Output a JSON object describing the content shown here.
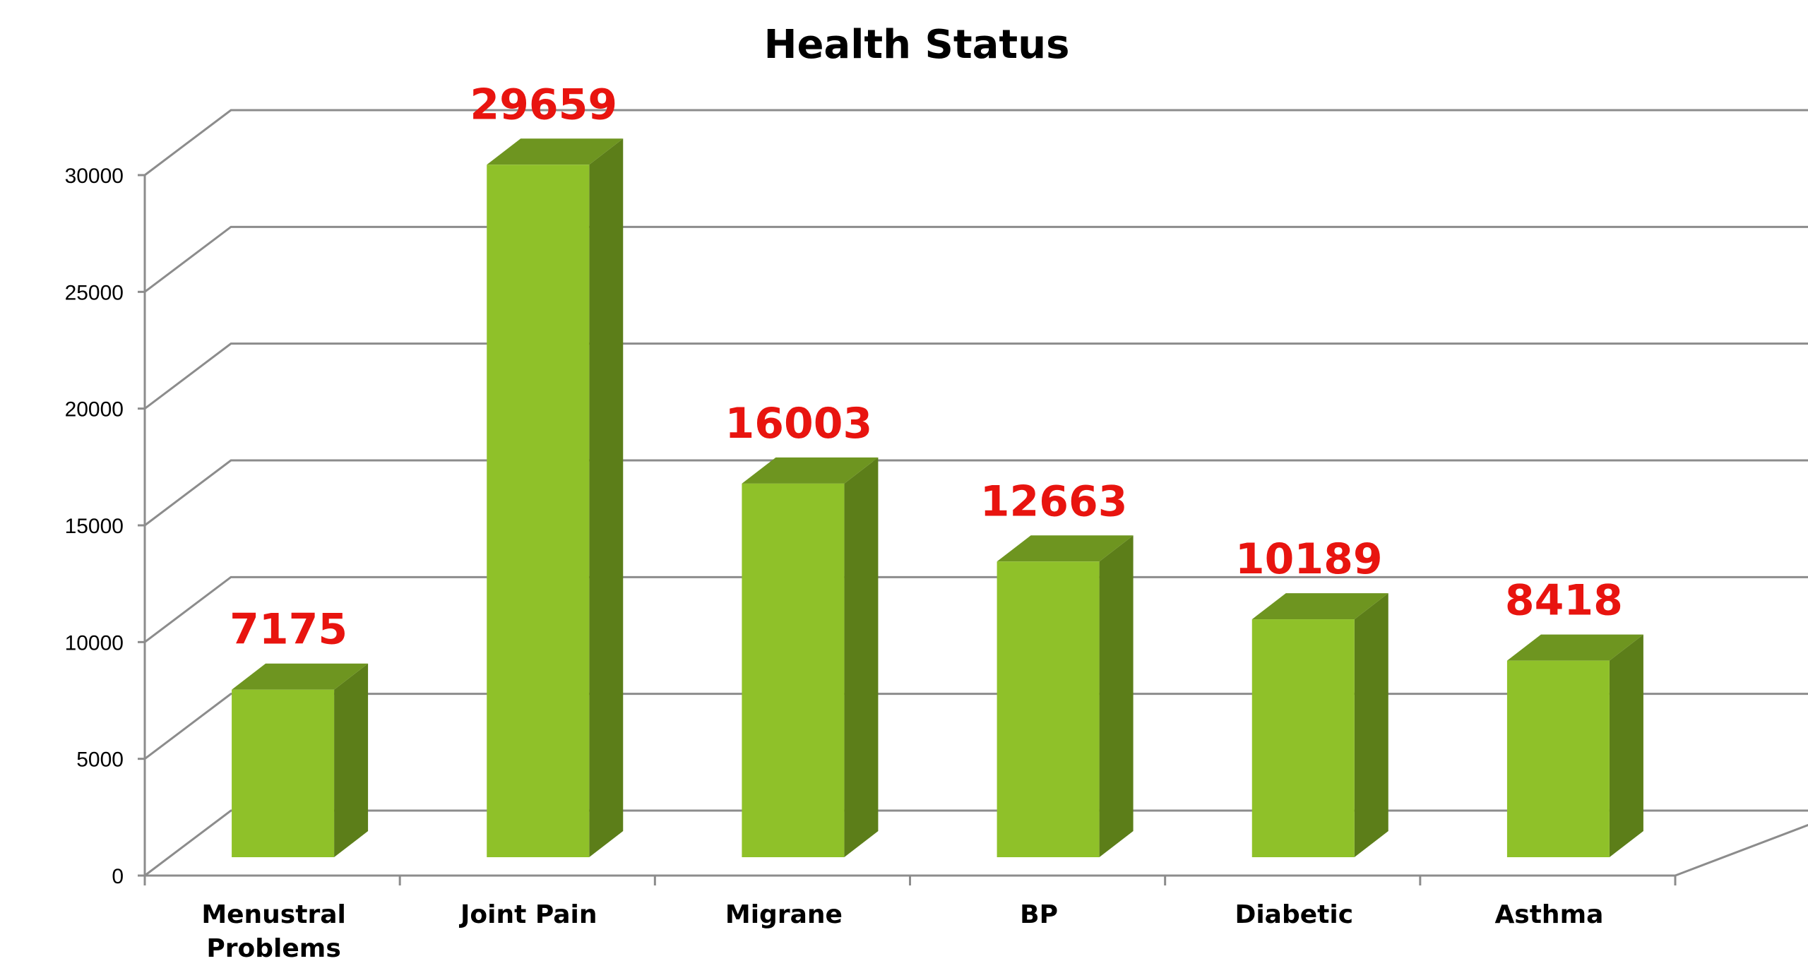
{
  "chart_data": {
    "type": "bar",
    "title": "Health Status",
    "categories": [
      "Menustral Problems",
      "Joint Pain",
      "Migrane",
      "BP",
      "Diabetic",
      "Asthma"
    ],
    "category_lines": [
      [
        "Menustral",
        "Problems"
      ],
      [
        "Joint Pain"
      ],
      [
        "Migrane"
      ],
      [
        "BP"
      ],
      [
        "Diabetic"
      ],
      [
        "Asthma"
      ]
    ],
    "values": [
      7175,
      29659,
      16003,
      12663,
      10189,
      8418
    ],
    "data_labels": [
      "7175",
      "29659",
      "16003",
      "12663",
      "10189",
      "8418"
    ],
    "yticks": [
      "0",
      "5000",
      "10000",
      "15000",
      "20000",
      "25000",
      "30000"
    ],
    "ylim": [
      0,
      30000
    ],
    "grid": true,
    "legend": "none",
    "style": "3d-column",
    "colors": {
      "bar_front": "#8fc129",
      "bar_top": "#6e9520",
      "bar_side": "#5c7e19",
      "data_label": "#e8140f",
      "gridline": "#8c8c8c",
      "axis_text": "#000000"
    }
  }
}
